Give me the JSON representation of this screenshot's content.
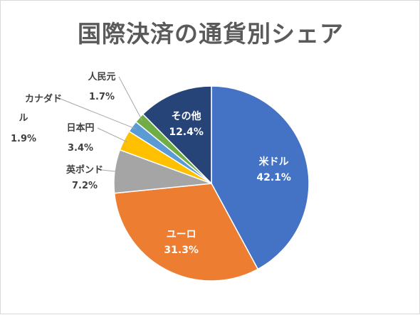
{
  "chart_data": {
    "type": "pie",
    "title": "国際決済の通貨別シェア",
    "slices": [
      {
        "name": "米ドル",
        "value": 42.1,
        "label": "42.1%",
        "color": "#4472C4"
      },
      {
        "name": "ユーロ",
        "value": 31.3,
        "label": "31.3%",
        "color": "#ED7D31"
      },
      {
        "name": "英ポンド",
        "value": 7.2,
        "label": "7.2%",
        "color": "#A5A5A5"
      },
      {
        "name": "日本円",
        "value": 3.4,
        "label": "3.4%",
        "color": "#FFC000"
      },
      {
        "name": "カナダドル",
        "value": 1.9,
        "label": "1.9%",
        "color": "#5B9BD5"
      },
      {
        "name": "人民元",
        "value": 1.7,
        "label": "1.7%",
        "color": "#70AD47"
      },
      {
        "name": "その他",
        "value": 12.4,
        "label": "12.4%",
        "color": "#264478"
      }
    ],
    "legend": "none"
  }
}
